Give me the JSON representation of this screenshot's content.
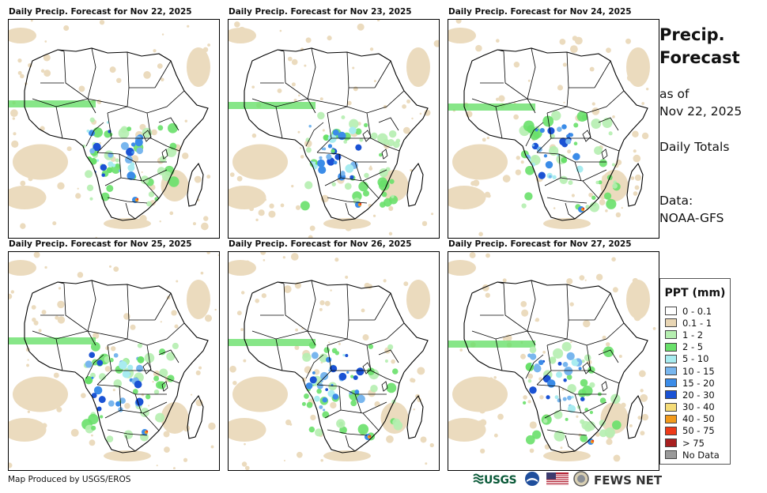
{
  "panels": [
    {
      "title": "Daily Precip. Forecast for Nov 22, 2025"
    },
    {
      "title": "Daily Precip. Forecast for Nov 23, 2025"
    },
    {
      "title": "Daily Precip. Forecast for Nov 24, 2025"
    },
    {
      "title": "Daily Precip. Forecast for Nov 25, 2025"
    },
    {
      "title": "Daily Precip. Forecast for Nov 26, 2025"
    },
    {
      "title": "Daily Precip. Forecast for Nov 27, 2025"
    }
  ],
  "sidebar": {
    "title_line1": "Precip.",
    "title_line2": "Forecast",
    "asof_label": "as of",
    "asof_date": "Nov 22, 2025",
    "totals_label": "Daily Totals",
    "data_label": "Data:",
    "data_source": "NOAA-GFS"
  },
  "legend": {
    "title": "PPT (mm)",
    "items": [
      {
        "label": "0 - 0.1",
        "color": "#ffffff"
      },
      {
        "label": "0.1 - 1",
        "color": "#e8d5b3"
      },
      {
        "label": "1 - 2",
        "color": "#b5eeb0"
      },
      {
        "label": "2 - 5",
        "color": "#69e06a"
      },
      {
        "label": "5 - 10",
        "color": "#a8ecf0"
      },
      {
        "label": "10 - 15",
        "color": "#78b6ee"
      },
      {
        "label": "15 - 20",
        "color": "#3b8ce8"
      },
      {
        "label": "20 - 30",
        "color": "#1a52d4"
      },
      {
        "label": "30 - 40",
        "color": "#f5dc78"
      },
      {
        "label": "40 - 50",
        "color": "#f29a1c"
      },
      {
        "label": "50 - 75",
        "color": "#ee3a18"
      },
      {
        "label": "> 75",
        "color": "#a81f1f"
      },
      {
        "label": "No Data",
        "color": "#999999"
      }
    ]
  },
  "footer": {
    "credit": "Map Produced by USGS/EROS",
    "usgs": "USGS",
    "fews": "FEWS NET"
  }
}
